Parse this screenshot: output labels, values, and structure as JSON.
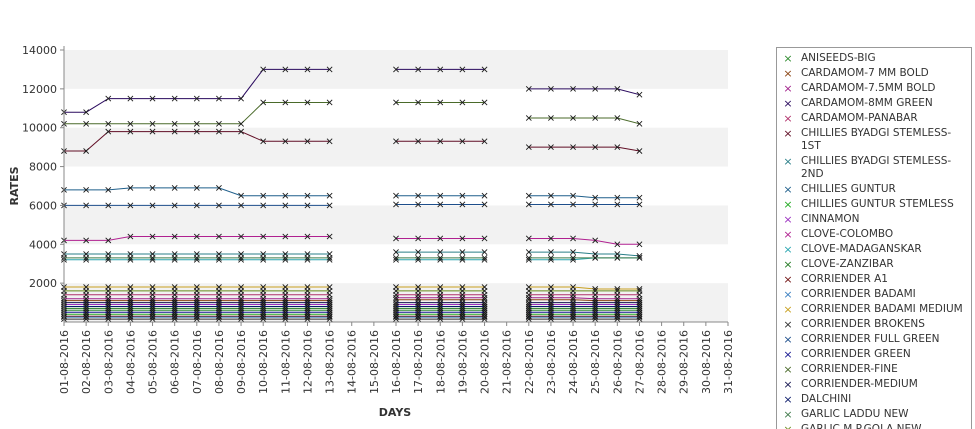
{
  "chart_data": {
    "type": "line",
    "xlabel": "DAYS",
    "ylabel": "RATES",
    "ylim": [
      0,
      14000
    ],
    "yticks": [
      2000,
      4000,
      6000,
      8000,
      10000,
      12000,
      14000
    ],
    "x": [
      "01-08-2016",
      "02-08-2016",
      "03-08-2016",
      "04-08-2016",
      "05-08-2016",
      "06-08-2016",
      "07-08-2016",
      "08-08-2016",
      "09-08-2016",
      "10-08-2016",
      "11-08-2016",
      "12-08-2016",
      "13-08-2016",
      "14-08-2016",
      "15-08-2016",
      "16-08-2016",
      "17-08-2016",
      "18-08-2016",
      "19-08-2016",
      "20-08-2016",
      "21-08-2016",
      "22-08-2016",
      "23-08-2016",
      "24-08-2016",
      "25-08-2016",
      "26-08-2016",
      "27-08-2016",
      "28-08-2016",
      "29-08-2016",
      "30-08-2016",
      "31-08-2016"
    ],
    "grid": "alternating horizontal bands",
    "legend_position": "right",
    "series": [
      {
        "name": "ANISEEDS-BIG",
        "color": "#2e8b2e",
        "values": [
          600,
          600,
          600,
          600,
          600,
          600,
          600,
          600,
          600,
          600,
          600,
          600,
          600,
          null,
          null,
          600,
          600,
          600,
          600,
          600,
          null,
          600,
          600,
          600,
          600,
          600,
          600,
          null,
          null,
          null,
          null
        ]
      },
      {
        "name": "CARDAMOM-7 MM BOLD",
        "color": "#8b4513",
        "values": [
          1100,
          1100,
          1100,
          1100,
          1100,
          1100,
          1100,
          1100,
          1100,
          1100,
          1100,
          1100,
          1100,
          null,
          null,
          1150,
          1150,
          1150,
          1150,
          1150,
          null,
          1150,
          1150,
          1150,
          1100,
          1100,
          1100,
          null,
          null,
          null,
          null
        ]
      },
      {
        "name": "CARDAMOM-7.5MM BOLD",
        "color": "#a0208a",
        "values": [
          1200,
          1200,
          1200,
          1200,
          1200,
          1200,
          1200,
          1200,
          1200,
          1200,
          1200,
          1200,
          1200,
          null,
          null,
          1250,
          1250,
          1250,
          1250,
          1250,
          null,
          1250,
          1250,
          1250,
          1200,
          1200,
          1200,
          null,
          null,
          null,
          null
        ]
      },
      {
        "name": "CARDAMOM-8MM GREEN",
        "color": "#2a0a5e",
        "values": [
          10800,
          10800,
          11500,
          11500,
          11500,
          11500,
          11500,
          11500,
          11500,
          13000,
          13000,
          13000,
          13000,
          null,
          null,
          13000,
          13000,
          13000,
          13000,
          13000,
          null,
          12000,
          12000,
          12000,
          12000,
          12000,
          11700,
          null,
          null,
          null,
          null
        ]
      },
      {
        "name": "CARDAMOM-PANABAR",
        "color": "#b0306a",
        "values": [
          1400,
          1400,
          1400,
          1400,
          1400,
          1400,
          1400,
          1400,
          1400,
          1400,
          1400,
          1400,
          1400,
          null,
          null,
          1400,
          1400,
          1400,
          1400,
          1400,
          null,
          1400,
          1400,
          1400,
          1400,
          1400,
          1400,
          null,
          null,
          null,
          null
        ]
      },
      {
        "name": "CHILLIES BYADGI STEMLESS-1ST",
        "color": "#600d24",
        "values": [
          8800,
          8800,
          9800,
          9800,
          9800,
          9800,
          9800,
          9800,
          9800,
          9300,
          9300,
          9300,
          9300,
          null,
          null,
          9300,
          9300,
          9300,
          9300,
          9300,
          null,
          9000,
          9000,
          9000,
          9000,
          9000,
          8800,
          null,
          null,
          null,
          null
        ]
      },
      {
        "name": "CHILLIES BYADGI STEMLESS-2ND",
        "color": "#2a7f88",
        "values": [
          3500,
          3500,
          3500,
          3500,
          3500,
          3500,
          3500,
          3500,
          3500,
          3500,
          3500,
          3500,
          3500,
          null,
          null,
          3600,
          3600,
          3600,
          3600,
          3600,
          null,
          3600,
          3600,
          3600,
          3500,
          3500,
          3400,
          null,
          null,
          null,
          null
        ]
      },
      {
        "name": "CHILLIES GUNTUR",
        "color": "#1f5f8b",
        "values": [
          6800,
          6800,
          6800,
          6900,
          6900,
          6900,
          6900,
          6900,
          6500,
          6500,
          6500,
          6500,
          6500,
          null,
          null,
          6500,
          6500,
          6500,
          6500,
          6500,
          null,
          6500,
          6500,
          6500,
          6400,
          6400,
          6400,
          null,
          null,
          null,
          null
        ]
      },
      {
        "name": "CHILLIES GUNTUR STEMLESS",
        "color": "#22aa22",
        "values": [
          400,
          400,
          400,
          400,
          400,
          400,
          400,
          400,
          400,
          400,
          400,
          400,
          400,
          null,
          null,
          400,
          400,
          400,
          400,
          400,
          null,
          400,
          400,
          400,
          400,
          400,
          400,
          null,
          null,
          null,
          null
        ]
      },
      {
        "name": "CINNAMON",
        "color": "#9b30c0",
        "values": [
          900,
          900,
          900,
          900,
          900,
          900,
          900,
          900,
          900,
          900,
          900,
          900,
          900,
          null,
          null,
          900,
          900,
          900,
          900,
          900,
          null,
          900,
          900,
          900,
          900,
          900,
          900,
          null,
          null,
          null,
          null
        ]
      },
      {
        "name": "CLOVE-COLOMBO",
        "color": "#b02090",
        "values": [
          4200,
          4200,
          4200,
          4400,
          4400,
          4400,
          4400,
          4400,
          4400,
          4400,
          4400,
          4400,
          4400,
          null,
          null,
          4300,
          4300,
          4300,
          4300,
          4300,
          null,
          4300,
          4300,
          4300,
          4200,
          4000,
          4000,
          null,
          null,
          null,
          null
        ]
      },
      {
        "name": "CLOVE-MADAGANSKAR",
        "color": "#2aa6b0",
        "values": [
          3200,
          3200,
          3200,
          3200,
          3200,
          3200,
          3200,
          3200,
          3200,
          3200,
          3200,
          3200,
          3200,
          null,
          null,
          3200,
          3200,
          3200,
          3200,
          3200,
          null,
          3200,
          3200,
          3200,
          3300,
          3300,
          3300,
          null,
          null,
          null,
          null
        ]
      },
      {
        "name": "CLOVE-ZANZIBAR",
        "color": "#227a22",
        "values": [
          700,
          700,
          700,
          700,
          700,
          700,
          700,
          700,
          700,
          700,
          700,
          700,
          700,
          null,
          null,
          700,
          700,
          700,
          700,
          700,
          null,
          700,
          700,
          700,
          700,
          700,
          700,
          null,
          null,
          null,
          null
        ]
      },
      {
        "name": "CORRIENDER A1",
        "color": "#701010",
        "values": [
          300,
          300,
          300,
          300,
          300,
          300,
          300,
          300,
          300,
          300,
          300,
          300,
          300,
          null,
          null,
          300,
          300,
          300,
          300,
          300,
          null,
          300,
          300,
          300,
          300,
          300,
          300,
          null,
          null,
          null,
          null
        ]
      },
      {
        "name": "CORRIENDER BADAMI",
        "color": "#3a7fc0",
        "values": [
          250,
          250,
          250,
          250,
          250,
          250,
          250,
          250,
          250,
          250,
          250,
          250,
          250,
          null,
          null,
          250,
          250,
          250,
          250,
          250,
          null,
          250,
          250,
          250,
          250,
          250,
          250,
          null,
          null,
          null,
          null
        ]
      },
      {
        "name": "CORRIENDER BADAMI MEDIUM",
        "color": "#c8a020",
        "values": [
          1800,
          1800,
          1800,
          1800,
          1800,
          1800,
          1800,
          1800,
          1800,
          1800,
          1800,
          1800,
          1800,
          null,
          null,
          1800,
          1800,
          1800,
          1800,
          1800,
          null,
          1800,
          1800,
          1800,
          1700,
          1700,
          1700,
          null,
          null,
          null,
          null
        ]
      },
      {
        "name": "CORRIENDER BROKENS",
        "color": "#303030",
        "values": [
          150,
          150,
          150,
          150,
          150,
          150,
          150,
          150,
          150,
          150,
          150,
          150,
          150,
          null,
          null,
          150,
          150,
          150,
          150,
          150,
          null,
          150,
          150,
          150,
          150,
          150,
          150,
          null,
          null,
          null,
          null
        ]
      },
      {
        "name": "CORRIENDER FULL GREEN",
        "color": "#1d4e8b",
        "values": [
          6000,
          6000,
          6000,
          6000,
          6000,
          6000,
          6000,
          6000,
          6000,
          6000,
          6000,
          6000,
          6000,
          null,
          null,
          6050,
          6050,
          6050,
          6050,
          6050,
          null,
          6050,
          6050,
          6050,
          6050,
          6050,
          6050,
          null,
          null,
          null,
          null
        ]
      },
      {
        "name": "CORRIENDER GREEN",
        "color": "#141490",
        "values": [
          500,
          500,
          500,
          500,
          500,
          500,
          500,
          500,
          500,
          500,
          500,
          500,
          500,
          null,
          null,
          500,
          500,
          500,
          500,
          500,
          null,
          500,
          500,
          500,
          500,
          500,
          500,
          null,
          null,
          null,
          null
        ]
      },
      {
        "name": "CORRIENDER-FINE",
        "color": "#4a6a2a",
        "values": [
          10200,
          10200,
          10200,
          10200,
          10200,
          10200,
          10200,
          10200,
          10200,
          11300,
          11300,
          11300,
          11300,
          null,
          null,
          11300,
          11300,
          11300,
          11300,
          11300,
          null,
          10500,
          10500,
          10500,
          10500,
          10500,
          10200,
          null,
          null,
          null,
          null
        ]
      },
      {
        "name": "CORRIENDER-MEDIUM",
        "color": "#151550",
        "values": [
          1000,
          1000,
          1000,
          1000,
          1000,
          1000,
          1000,
          1000,
          1000,
          1000,
          1000,
          1000,
          1000,
          null,
          null,
          1000,
          1000,
          1000,
          1000,
          1000,
          null,
          1000,
          1000,
          1000,
          1000,
          1000,
          1000,
          null,
          null,
          null,
          null
        ]
      },
      {
        "name": "DALCHINI",
        "color": "#0a1a6a",
        "values": [
          800,
          800,
          800,
          800,
          800,
          800,
          800,
          800,
          800,
          800,
          800,
          800,
          800,
          null,
          null,
          800,
          800,
          800,
          800,
          800,
          null,
          800,
          800,
          800,
          800,
          800,
          800,
          null,
          null,
          null,
          null
        ]
      },
      {
        "name": "GARLIC LADDU NEW",
        "color": "#3f7a4a",
        "values": [
          3300,
          3300,
          3300,
          3300,
          3300,
          3300,
          3300,
          3300,
          3300,
          3300,
          3300,
          3300,
          3300,
          null,
          null,
          3300,
          3300,
          3300,
          3300,
          3300,
          null,
          3300,
          3300,
          3300,
          3300,
          3300,
          3300,
          null,
          null,
          null,
          null
        ]
      },
      {
        "name": "GARLIC M.P.GOLA NEW",
        "color": "#6a8a1a",
        "values": [
          1600,
          1600,
          1600,
          1600,
          1600,
          1600,
          1600,
          1600,
          1600,
          1600,
          1600,
          1600,
          1600,
          null,
          null,
          1600,
          1600,
          1600,
          1600,
          1600,
          null,
          1600,
          1600,
          1600,
          1600,
          1600,
          1600,
          null,
          null,
          null,
          null
        ]
      }
    ]
  }
}
